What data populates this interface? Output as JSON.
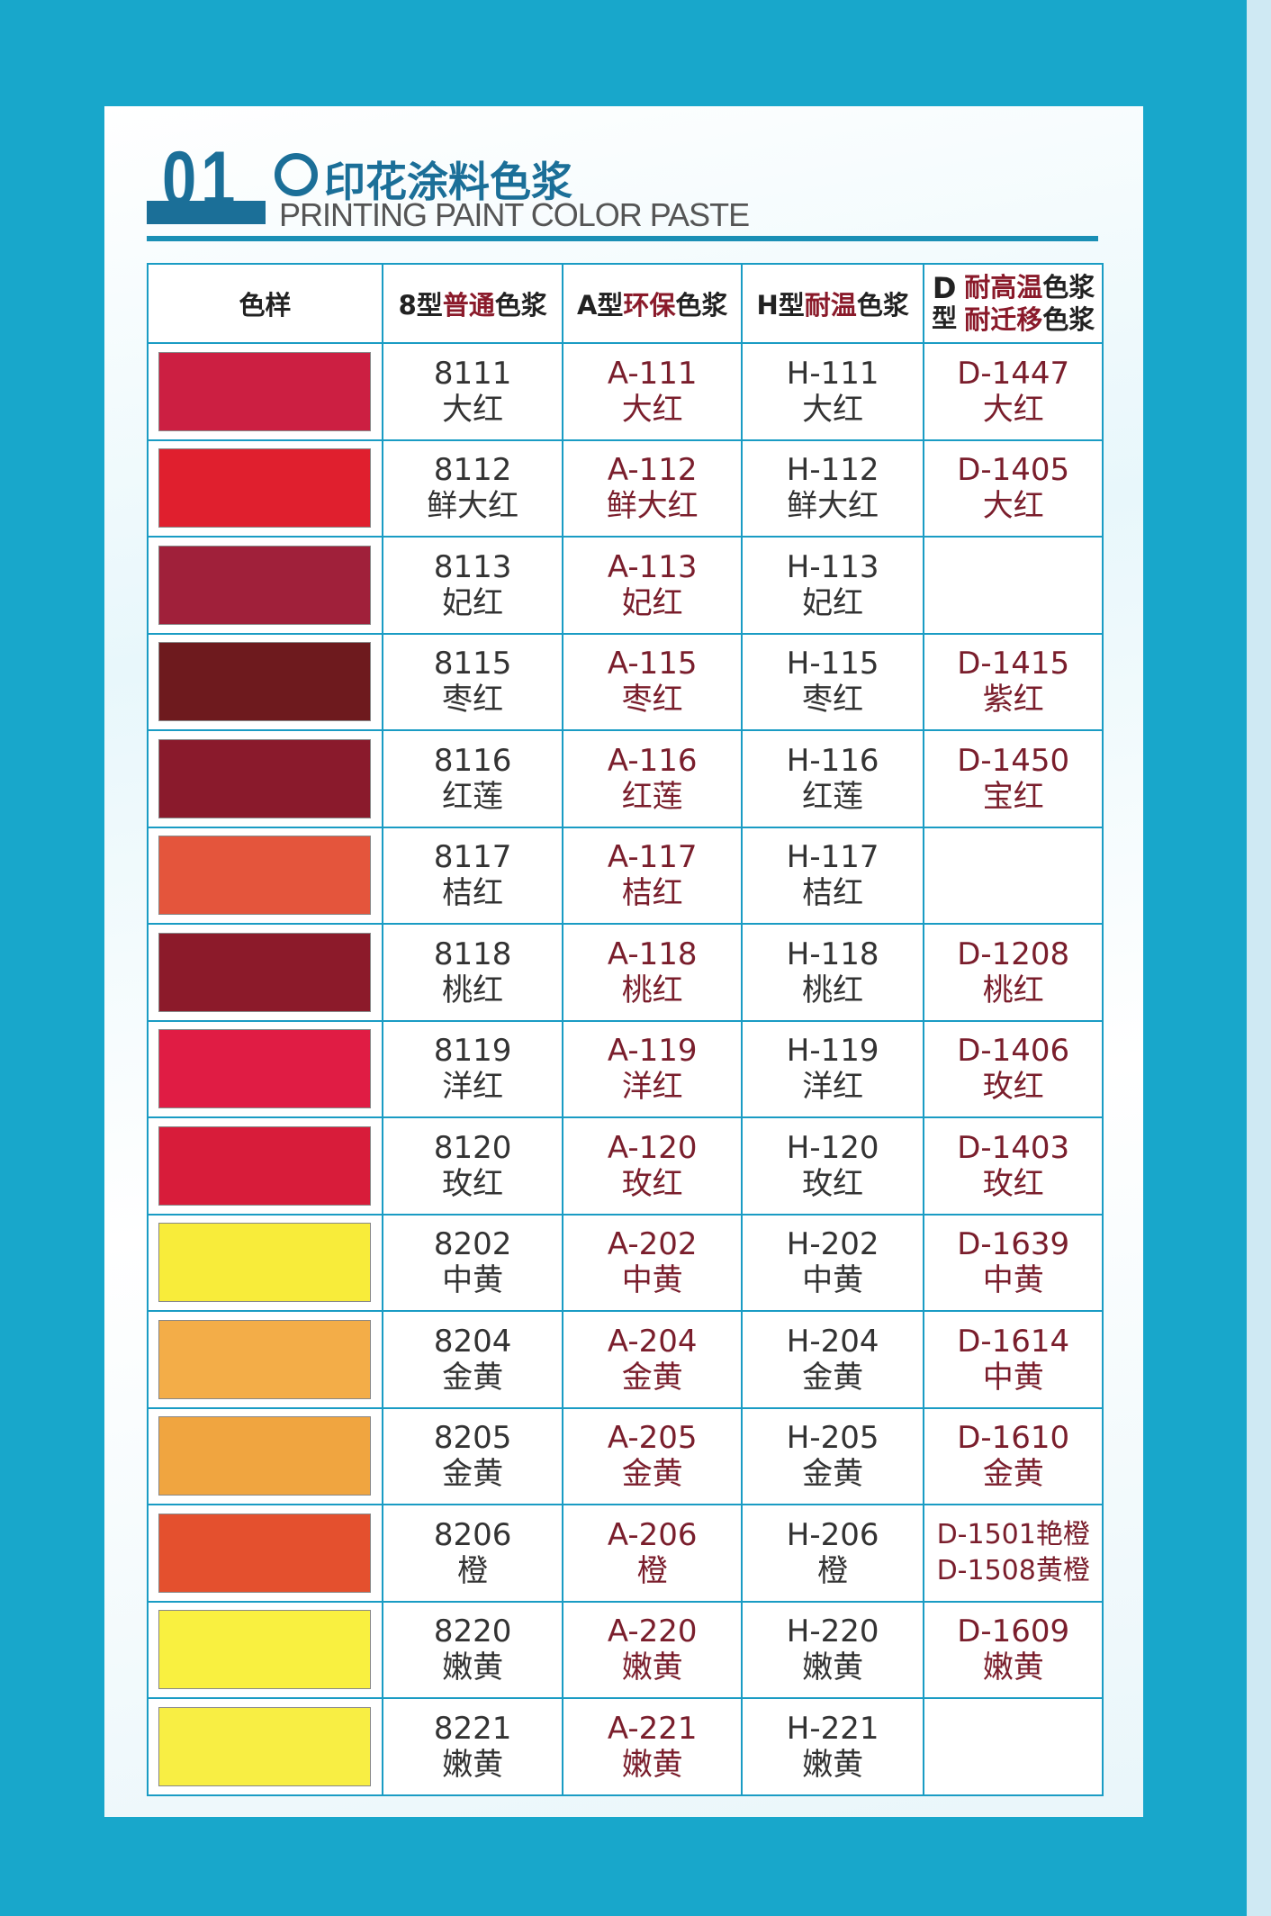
{
  "header": {
    "number": "01",
    "title_cn": "印花涂料色浆",
    "title_en": "PRINTING PAINT COLOR PASTE"
  },
  "columns": {
    "swatch": "色样",
    "c8": {
      "a": "8型",
      "b": "普通",
      "c": "色浆"
    },
    "cA": {
      "a": "A型",
      "b": "环保",
      "c": "色浆"
    },
    "cH": {
      "a": "H型",
      "b": "耐温",
      "c": "色浆"
    },
    "cD": {
      "a": "D",
      "b": "型",
      "l1r": "耐高温",
      "l1": "色浆",
      "l2r": "耐迁移",
      "l2": "色浆"
    }
  },
  "rows": [
    {
      "color": "#cc1f42",
      "c8": [
        "8111",
        "大红"
      ],
      "a": [
        "A-111",
        "大红"
      ],
      "h": [
        "H-111",
        "大红"
      ],
      "d": [
        "D-1447",
        "大红"
      ]
    },
    {
      "color": "#e01f2e",
      "c8": [
        "8112",
        "鲜大红"
      ],
      "a": [
        "A-112",
        "鲜大红"
      ],
      "h": [
        "H-112",
        "鲜大红"
      ],
      "d": [
        "D-1405",
        "大红"
      ]
    },
    {
      "color": "#a0203a",
      "c8": [
        "8113",
        "妃红"
      ],
      "a": [
        "A-113",
        "妃红"
      ],
      "h": [
        "H-113",
        "妃红"
      ],
      "d": [
        "",
        ""
      ]
    },
    {
      "color": "#6e1a1e",
      "c8": [
        "8115",
        "枣红"
      ],
      "a": [
        "A-115",
        "枣红"
      ],
      "h": [
        "H-115",
        "枣红"
      ],
      "d": [
        "D-1415",
        "紫红"
      ]
    },
    {
      "color": "#8a1a2c",
      "c8": [
        "8116",
        "红莲"
      ],
      "a": [
        "A-116",
        "红莲"
      ],
      "h": [
        "H-116",
        "红莲"
      ],
      "d": [
        "D-1450",
        "宝红"
      ]
    },
    {
      "color": "#e4553c",
      "c8": [
        "8117",
        "桔红"
      ],
      "a": [
        "A-117",
        "桔红"
      ],
      "h": [
        "H-117",
        "桔红"
      ],
      "d": [
        "",
        ""
      ]
    },
    {
      "color": "#8c1a2a",
      "c8": [
        "8118",
        "桃红"
      ],
      "a": [
        "A-118",
        "桃红"
      ],
      "h": [
        "H-118",
        "桃红"
      ],
      "d": [
        "D-1208",
        "桃红"
      ]
    },
    {
      "color": "#e01c44",
      "c8": [
        "8119",
        "洋红"
      ],
      "a": [
        "A-119",
        "洋红"
      ],
      "h": [
        "H-119",
        "洋红"
      ],
      "d": [
        "D-1406",
        "玫红"
      ]
    },
    {
      "color": "#d81c3a",
      "c8": [
        "8120",
        "玫红"
      ],
      "a": [
        "A-120",
        "玫红"
      ],
      "h": [
        "H-120",
        "玫红"
      ],
      "d": [
        "D-1403",
        "玫红"
      ]
    },
    {
      "color": "#f8ec3a",
      "c8": [
        "8202",
        "中黄"
      ],
      "a": [
        "A-202",
        "中黄"
      ],
      "h": [
        "H-202",
        "中黄"
      ],
      "d": [
        "D-1639",
        "中黄"
      ]
    },
    {
      "color": "#f3ad48",
      "c8": [
        "8204",
        "金黄"
      ],
      "a": [
        "A-204",
        "金黄"
      ],
      "h": [
        "H-204",
        "金黄"
      ],
      "d": [
        "D-1614",
        "中黄"
      ]
    },
    {
      "color": "#f0a540",
      "c8": [
        "8205",
        "金黄"
      ],
      "a": [
        "A-205",
        "金黄"
      ],
      "h": [
        "H-205",
        "金黄"
      ],
      "d": [
        "D-1610",
        "金黄"
      ]
    },
    {
      "color": "#e4502e",
      "c8": [
        "8206",
        "橙"
      ],
      "a": [
        "A-206",
        "橙"
      ],
      "h": [
        "H-206",
        "橙"
      ],
      "d": [
        "D-1501艳橙",
        "D-1508黄橙"
      ]
    },
    {
      "color": "#f9f040",
      "c8": [
        "8220",
        "嫩黄"
      ],
      "a": [
        "A-220",
        "嫩黄"
      ],
      "h": [
        "H-220",
        "嫩黄"
      ],
      "d": [
        "D-1609",
        "嫩黄"
      ]
    },
    {
      "color": "#f8ee44",
      "c8": [
        "8221",
        "嫩黄"
      ],
      "a": [
        "A-221",
        "嫩黄"
      ],
      "h": [
        "H-221",
        "嫩黄"
      ],
      "d": [
        "",
        ""
      ]
    }
  ]
}
